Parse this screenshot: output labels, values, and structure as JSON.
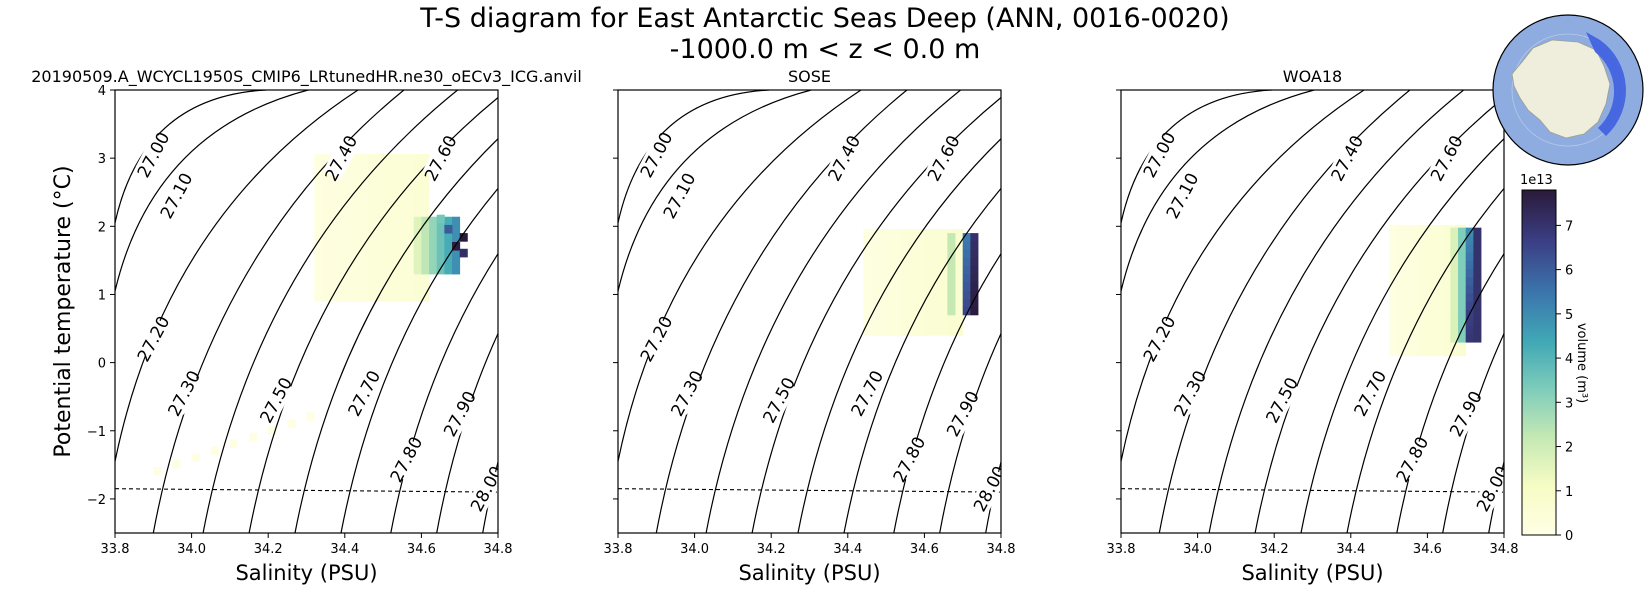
{
  "figure": {
    "title_line1": "T-S diagram for East Antarctic Seas Deep (ANN, 0016-0020)",
    "title_line2": "-1000.0 m < z < 0.0 m"
  },
  "chart_data": {
    "type": "heatmap",
    "xlabel": "Salinity (PSU)",
    "ylabel": "Potential temperature (°C)",
    "xlim": [
      33.8,
      34.8
    ],
    "ylim": [
      -2.5,
      4
    ],
    "xticks": [
      "33.8",
      "34.0",
      "34.2",
      "34.4",
      "34.6",
      "34.8"
    ],
    "yticks": [
      "−2",
      "−1",
      "0",
      "1",
      "2",
      "3",
      "4"
    ],
    "density_contours": [
      "27.00",
      "27.10",
      "27.20",
      "27.30",
      "27.40",
      "27.50",
      "27.60",
      "27.70",
      "27.80",
      "27.90",
      "28.00"
    ],
    "colorbar": {
      "label": "volume (m³)",
      "multiplier": "1e13",
      "ticks": [
        "0",
        "1",
        "2",
        "3",
        "4",
        "5",
        "6",
        "7"
      ],
      "vmin": 0,
      "vmax": 7.8
    },
    "panels": [
      {
        "title": "20190509.A_WCYCL1950S_CMIP6_LRtunedHR.ne30_oECv3_ICG.anvil"
      },
      {
        "title": "SOSE"
      },
      {
        "title": "WOA18"
      }
    ]
  }
}
